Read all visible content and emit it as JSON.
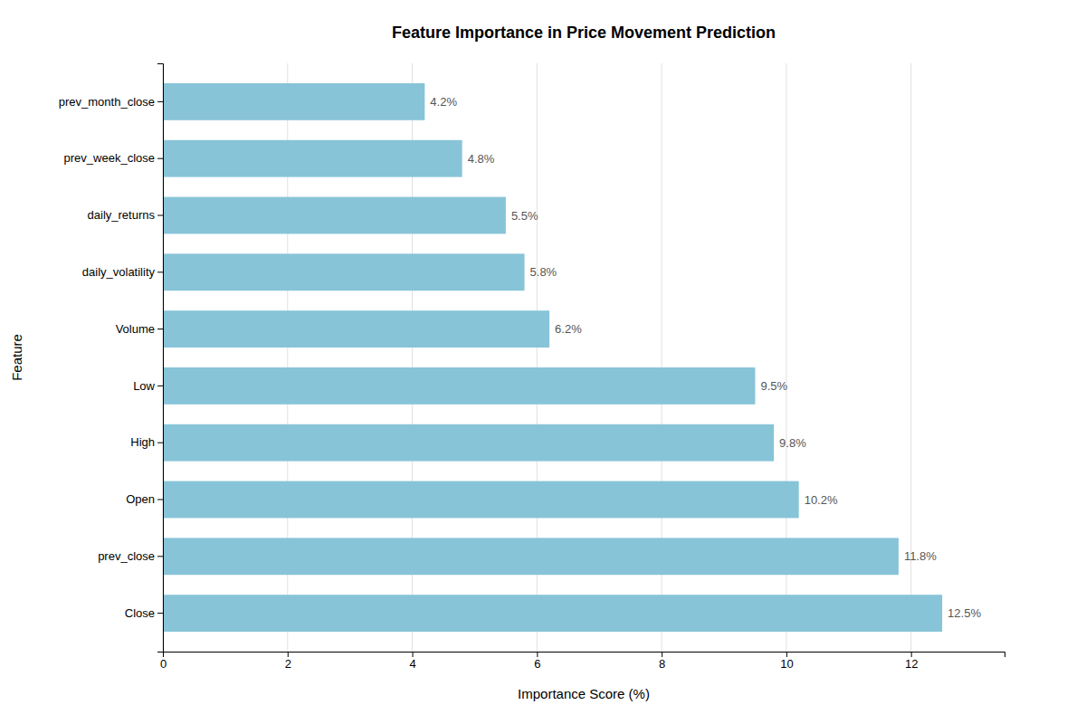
{
  "chart_data": {
    "type": "bar",
    "orientation": "horizontal",
    "title": "Feature Importance in Price Movement Prediction",
    "xlabel": "Importance Score (%)",
    "ylabel": "Feature",
    "categories": [
      "Close",
      "prev_close",
      "Open",
      "High",
      "Low",
      "Volume",
      "daily_volatility",
      "daily_returns",
      "prev_week_close",
      "prev_month_close"
    ],
    "values": [
      12.5,
      11.8,
      10.2,
      9.8,
      9.5,
      6.2,
      5.8,
      5.5,
      4.8,
      4.2
    ],
    "value_labels": [
      "12.5%",
      "11.8%",
      "10.2%",
      "9.8%",
      "9.5%",
      "6.2%",
      "5.8%",
      "5.5%",
      "4.8%",
      "4.2%"
    ],
    "color": "#87C4D8",
    "xlim": [
      0,
      13.5
    ],
    "xticks": [
      0,
      2,
      4,
      6,
      8,
      10,
      12
    ],
    "grid": true,
    "data_labels": true
  }
}
